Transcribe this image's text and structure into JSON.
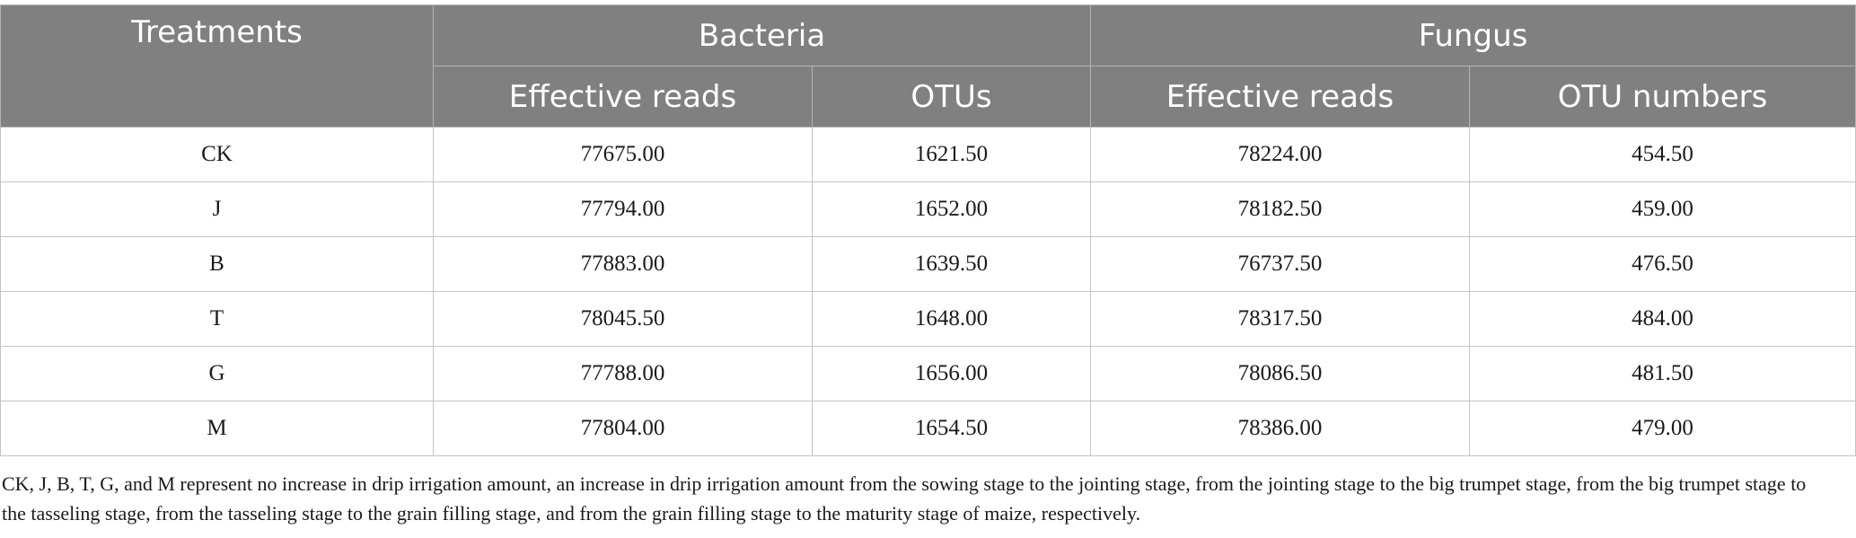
{
  "table": {
    "header": {
      "treatments": "Treatments",
      "bacteria": "Bacteria",
      "fungus": "Fungus",
      "bacteria_effective_reads": "Effective reads",
      "bacteria_otus": "OTUs",
      "fungus_effective_reads": "Effective reads",
      "fungus_otu_numbers": "OTU numbers"
    },
    "rows": [
      {
        "treatment": "CK",
        "b_reads": "77675.00",
        "b_otus": "1621.50",
        "f_reads": "78224.00",
        "f_otus": "454.50"
      },
      {
        "treatment": "J",
        "b_reads": "77794.00",
        "b_otus": "1652.00",
        "f_reads": "78182.50",
        "f_otus": "459.00"
      },
      {
        "treatment": "B",
        "b_reads": "77883.00",
        "b_otus": "1639.50",
        "f_reads": "76737.50",
        "f_otus": "476.50"
      },
      {
        "treatment": "T",
        "b_reads": "78045.50",
        "b_otus": "1648.00",
        "f_reads": "78317.50",
        "f_otus": "484.00"
      },
      {
        "treatment": "G",
        "b_reads": "77788.00",
        "b_otus": "1656.00",
        "f_reads": "78086.50",
        "f_otus": "481.50"
      },
      {
        "treatment": "M",
        "b_reads": "77804.00",
        "b_otus": "1654.50",
        "f_reads": "78386.00",
        "f_otus": "479.00"
      }
    ]
  },
  "footnote": "CK, J, B, T, G, and M represent no increase in drip irrigation amount, an increase in drip irrigation amount from the sowing stage to the jointing stage, from the jointing stage to the big trumpet stage, from the big trumpet stage to the tasseling stage, from the tasseling stage to the grain filling stage, and from the grain filling stage to the maturity stage of maize, respectively."
}
